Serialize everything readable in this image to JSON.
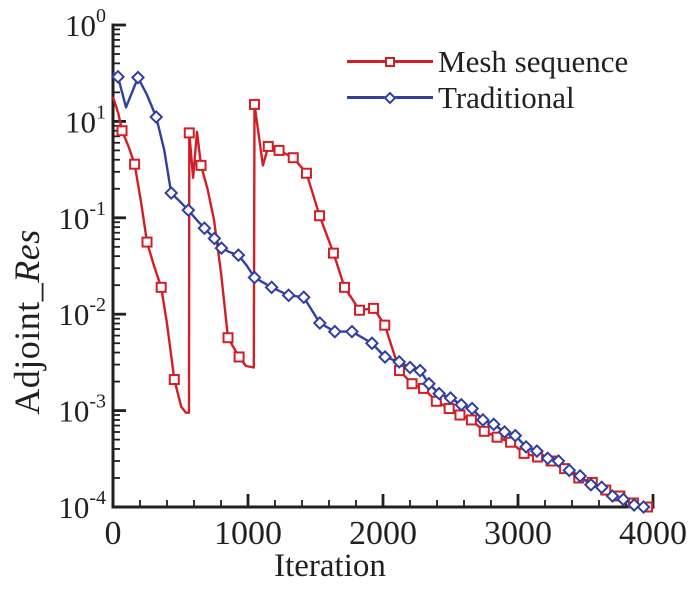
{
  "colors": {
    "background": "#ffffff",
    "axis": "#231f20",
    "text": "#231f20",
    "mesh_sequence_red": "#d21f26",
    "traditional_blue": "#3140a0"
  },
  "legend": {
    "entries": [
      {
        "label": "Mesh sequence",
        "marker": "square",
        "color": "#d21f26"
      },
      {
        "label": "Traditional",
        "marker": "diamond",
        "color": "#3140a0"
      }
    ]
  },
  "chart_data": {
    "type": "line",
    "title": "",
    "xlabel": "Iteration",
    "ylabel": "Adjoint_Res",
    "ylabel_prefix": "Adjoint_",
    "ylabel_italic": "Res",
    "x_axis": {
      "min": 0,
      "max": 4000,
      "major_tick_labels": [
        "0",
        "1000",
        "2000",
        "3000",
        "4000"
      ],
      "major_tick_values": [
        0,
        1000,
        2000,
        3000,
        4000
      ],
      "minor_tick_step": 200
    },
    "y_axis": {
      "scale": "log",
      "decades": 5,
      "top_exponent": 1,
      "bottom_exponent": -4,
      "tick_label_base": "10",
      "tick_label_exponents_as_printed": [
        "0",
        "1",
        "-1",
        "-2",
        "-3",
        "-4"
      ]
    },
    "grid": false,
    "legend_position": "top-right-inside",
    "series": [
      {
        "name": "Mesh sequence",
        "color": "#d21f26",
        "marker": "square",
        "points": [
          [
            0,
            1.8,
            0
          ],
          [
            40,
            1.2,
            0
          ],
          [
            67,
            0.8,
            1
          ],
          [
            115,
            0.55,
            0
          ],
          [
            160,
            0.36,
            1
          ],
          [
            210,
            0.14,
            0
          ],
          [
            252,
            0.056,
            1
          ],
          [
            300,
            0.033,
            0
          ],
          [
            357,
            0.019,
            1
          ],
          [
            400,
            0.008,
            0
          ],
          [
            454,
            0.0021,
            1
          ],
          [
            505,
            0.0011,
            0
          ],
          [
            540,
            0.00095,
            0
          ],
          [
            563,
            0.00095,
            0
          ],
          [
            565,
            0.76,
            1
          ],
          [
            593,
            0.26,
            0
          ],
          [
            622,
            0.78,
            0
          ],
          [
            652,
            0.35,
            1
          ],
          [
            700,
            0.2,
            0
          ],
          [
            748,
            0.095,
            0
          ],
          [
            800,
            0.027,
            0
          ],
          [
            852,
            0.0057,
            1
          ],
          [
            934,
            0.0036,
            1
          ],
          [
            985,
            0.0029,
            0
          ],
          [
            1043,
            0.0028,
            0
          ],
          [
            1048,
            1.5,
            1
          ],
          [
            1110,
            0.35,
            0
          ],
          [
            1150,
            0.55,
            1
          ],
          [
            1230,
            0.5,
            1
          ],
          [
            1335,
            0.42,
            1
          ],
          [
            1433,
            0.29,
            1
          ],
          [
            1530,
            0.105,
            1
          ],
          [
            1633,
            0.043,
            1
          ],
          [
            1715,
            0.019,
            1
          ],
          [
            1826,
            0.011,
            1
          ],
          [
            1930,
            0.0115,
            1
          ],
          [
            2013,
            0.0077,
            1
          ],
          [
            2122,
            0.0026,
            1
          ],
          [
            2215,
            0.0019,
            1
          ],
          [
            2300,
            0.0017,
            1
          ],
          [
            2395,
            0.00125,
            1
          ],
          [
            2490,
            0.00105,
            1
          ],
          [
            2570,
            0.0009,
            1
          ],
          [
            2655,
            0.0008,
            1
          ],
          [
            2750,
            0.00061,
            1
          ],
          [
            2845,
            0.00053,
            1
          ],
          [
            2945,
            0.00047,
            1
          ],
          [
            3045,
            0.00036,
            1
          ],
          [
            3145,
            0.00033,
            1
          ],
          [
            3245,
            0.0003,
            1
          ],
          [
            3345,
            0.00025,
            1
          ],
          [
            3450,
            0.0002,
            1
          ],
          [
            3550,
            0.00018,
            1
          ],
          [
            3650,
            0.00015,
            1
          ],
          [
            3755,
            0.00013,
            1
          ],
          [
            3855,
            0.00011,
            1
          ],
          [
            3960,
            0.0001,
            1
          ]
        ]
      },
      {
        "name": "Traditional",
        "color": "#3140a0",
        "marker": "diamond",
        "points": [
          [
            0,
            3.2,
            0
          ],
          [
            37,
            2.9,
            1
          ],
          [
            96,
            1.4,
            0
          ],
          [
            185,
            2.85,
            1
          ],
          [
            250,
            1.9,
            0
          ],
          [
            320,
            1.11,
            1
          ],
          [
            380,
            0.5,
            0
          ],
          [
            431,
            0.181,
            1
          ],
          [
            490,
            0.15,
            0
          ],
          [
            558,
            0.12,
            1
          ],
          [
            620,
            0.095,
            0
          ],
          [
            677,
            0.078,
            1
          ],
          [
            751,
            0.061,
            1
          ],
          [
            803,
            0.0485,
            1
          ],
          [
            865,
            0.044,
            0
          ],
          [
            929,
            0.041,
            1
          ],
          [
            990,
            0.032,
            0
          ],
          [
            1048,
            0.024,
            1
          ],
          [
            1175,
            0.019,
            1
          ],
          [
            1301,
            0.0157,
            1
          ],
          [
            1413,
            0.015,
            1
          ],
          [
            1532,
            0.0081,
            1
          ],
          [
            1643,
            0.0066,
            1
          ],
          [
            1770,
            0.0066,
            1
          ],
          [
            1918,
            0.005,
            1
          ],
          [
            2015,
            0.0036,
            1
          ],
          [
            2120,
            0.0032,
            1
          ],
          [
            2200,
            0.0028,
            1
          ],
          [
            2275,
            0.0026,
            1
          ],
          [
            2340,
            0.0019,
            1
          ],
          [
            2416,
            0.0015,
            1
          ],
          [
            2500,
            0.00135,
            1
          ],
          [
            2580,
            0.00115,
            1
          ],
          [
            2660,
            0.00105,
            1
          ],
          [
            2740,
            0.0008,
            1
          ],
          [
            2820,
            0.00072,
            1
          ],
          [
            2900,
            0.0006,
            1
          ],
          [
            2980,
            0.00055,
            1
          ],
          [
            3060,
            0.00042,
            1
          ],
          [
            3140,
            0.00038,
            1
          ],
          [
            3220,
            0.00032,
            1
          ],
          [
            3300,
            0.0003,
            1
          ],
          [
            3380,
            0.00024,
            1
          ],
          [
            3460,
            0.00021,
            1
          ],
          [
            3540,
            0.00017,
            1
          ],
          [
            3620,
            0.00016,
            1
          ],
          [
            3700,
            0.00013,
            1
          ],
          [
            3780,
            0.00012,
            1
          ],
          [
            3860,
            0.000105,
            1
          ],
          [
            3930,
            0.0001,
            1
          ]
        ]
      }
    ]
  }
}
